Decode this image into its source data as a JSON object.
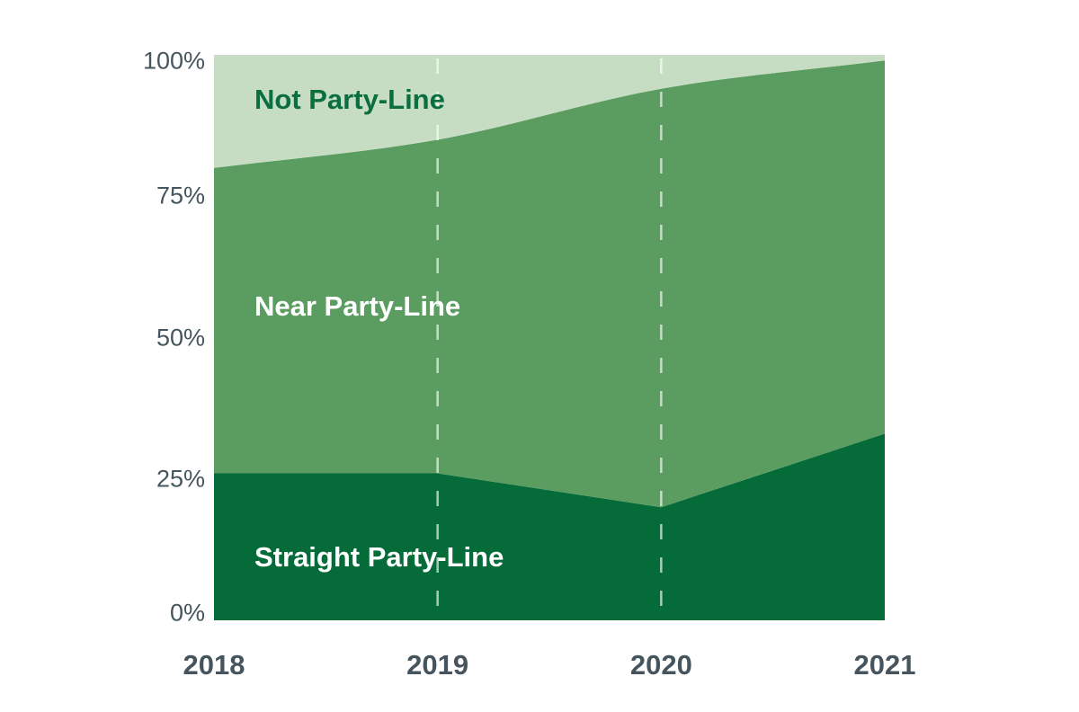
{
  "chart_data": {
    "type": "area",
    "stacked": true,
    "unit": "%",
    "title": "",
    "xlabel": "",
    "ylabel": "",
    "x": [
      2018,
      2019,
      2020,
      2021
    ],
    "x_tick_labels": [
      "2018",
      "2019",
      "2020",
      "2021"
    ],
    "y_ticks": [
      0,
      25,
      50,
      75,
      100
    ],
    "y_tick_labels": [
      "0%",
      "25%",
      "50%",
      "75%",
      "100%"
    ],
    "ylim": [
      0,
      100
    ],
    "grid": {
      "horizontal": false,
      "vertical_dashed_at": [
        2019,
        2020
      ]
    },
    "legend": "labels-placed-inside-areas",
    "series": [
      {
        "name": "Straight Party-Line",
        "values": [
          26,
          26,
          20,
          33
        ],
        "color": "#046b39",
        "label_color": "#ffffff",
        "curve": "linear"
      },
      {
        "name": "Near Party-Line",
        "values": [
          54,
          59,
          74,
          66
        ],
        "color": "#5b9d61",
        "label_color": "#ffffff",
        "curve": "smooth"
      },
      {
        "name": "Not Party-Line",
        "values": [
          20,
          15,
          6,
          1
        ],
        "color": "#c6ddc3",
        "label_color": "#0b6e3e",
        "curve": "linear"
      }
    ],
    "colors": {
      "background": "#ffffff",
      "axis_text": "#46565e",
      "year_text": "#45545d",
      "gridline": "#ffffff"
    }
  }
}
